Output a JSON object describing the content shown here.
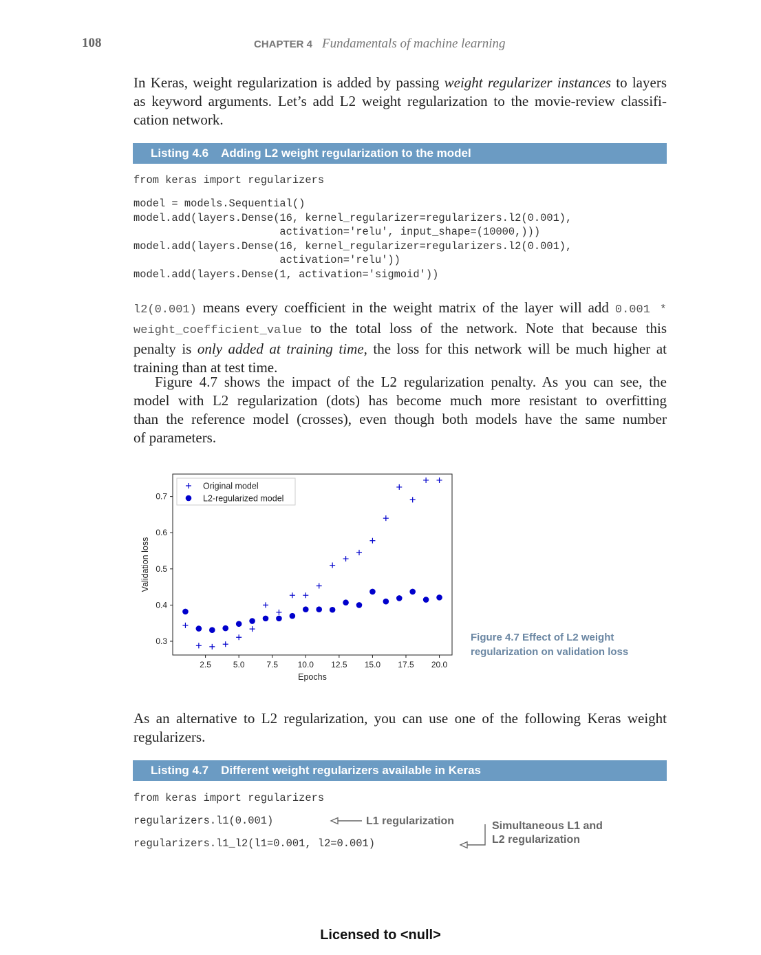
{
  "header": {
    "page_number": "108",
    "chapter_label": "CHAPTER 4",
    "chapter_title": "Fundamentals of machine learning"
  },
  "para1": {
    "l1a": "In Keras, weight regularization is added by passing ",
    "l1b": "weight regularizer instances",
    "l1c": " to layers",
    "l2": "as keyword arguments. Let’s add L2 weight regularization to the movie-review classifi-",
    "l3": "cation network."
  },
  "listing46": {
    "number": "Listing 4.6",
    "title": "Adding L2 weight regularization to the model",
    "code_import": "from keras import regularizers",
    "code_model": "model = models.Sequential()\nmodel.add(layers.Dense(16, kernel_regularizer=regularizers.l2(0.001),\n                       activation='relu', input_shape=(10000,)))\nmodel.add(layers.Dense(16, kernel_regularizer=regularizers.l2(0.001),\n                       activation='relu'))\nmodel.add(layers.Dense(1, activation='sigmoid'))"
  },
  "para2": {
    "l1code": "l2(0.001)",
    "l1text": " means every coefficient in the weight matrix of the layer will add ",
    "l1code2": "0.001 *",
    "l2code": "weight_coefficient_value",
    "l2text": " to the total loss of the network. Note that because this",
    "l3a": "penalty is ",
    "l3b": "only added at training time",
    "l3c": ", the loss for this network will be much higher at",
    "l4": "training than at test time."
  },
  "para3": {
    "l1": "Figure 4.7 shows the impact of the L2 regularization penalty. As you can see, the",
    "l2": "model with L2 regularization (dots) has become much more resistant to overfitting",
    "l3": "than the reference model (crosses), even though both models have the same number",
    "l4": "of parameters."
  },
  "figure": {
    "caption_line1": "Figure 4.7    Effect of L2 weight",
    "caption_line2": "regularization on validation loss"
  },
  "chart_data": {
    "type": "scatter",
    "xlabel": "Epochs",
    "ylabel": "Validation loss",
    "xlim": [
      0.05,
      20.95
    ],
    "ylim": [
      0.262,
      0.762
    ],
    "xticks": [
      "2.5",
      "5.0",
      "7.5",
      "10.0",
      "12.5",
      "15.0",
      "17.5",
      "20.0"
    ],
    "yticks": [
      "0.3",
      "0.4",
      "0.5",
      "0.6",
      "0.7"
    ],
    "legend_position": "top-left",
    "series": [
      {
        "name": "Original model",
        "marker": "+",
        "color": "#0000cc",
        "x": [
          1,
          2,
          3,
          4,
          5,
          6,
          7,
          8,
          9,
          10,
          11,
          12,
          13,
          14,
          15,
          16,
          17,
          18,
          19,
          20
        ],
        "y": [
          0.344,
          0.288,
          0.285,
          0.292,
          0.311,
          0.334,
          0.4,
          0.38,
          0.427,
          0.427,
          0.453,
          0.51,
          0.528,
          0.545,
          0.578,
          0.64,
          0.726,
          0.691,
          0.745,
          0.745
        ]
      },
      {
        "name": "L2-regularized model",
        "marker": "o",
        "color": "#0000cc",
        "x": [
          1,
          2,
          3,
          4,
          5,
          6,
          7,
          8,
          9,
          10,
          11,
          12,
          13,
          14,
          15,
          16,
          17,
          18,
          19,
          20
        ],
        "y": [
          0.382,
          0.335,
          0.331,
          0.336,
          0.348,
          0.356,
          0.363,
          0.363,
          0.37,
          0.388,
          0.388,
          0.387,
          0.407,
          0.4,
          0.437,
          0.41,
          0.419,
          0.437,
          0.415,
          0.421
        ]
      }
    ]
  },
  "para4": {
    "l1": "As an alternative to L2 regularization, you can use one of the following Keras weight",
    "l2": "regularizers."
  },
  "listing47": {
    "number": "Listing 4.7",
    "title": "Different weight regularizers available in Keras",
    "code_import": "from keras import regularizers",
    "code_l1": "regularizers.l1(0.001)",
    "code_l1l2": "regularizers.l1_l2(l1=0.001, l2=0.001)",
    "anno_l1": "L1 regularization",
    "anno_l1l2_line1": "Simultaneous L1 and",
    "anno_l1l2_line2": "L2 regularization"
  },
  "footer": {
    "text": "Licensed to   <null>"
  }
}
